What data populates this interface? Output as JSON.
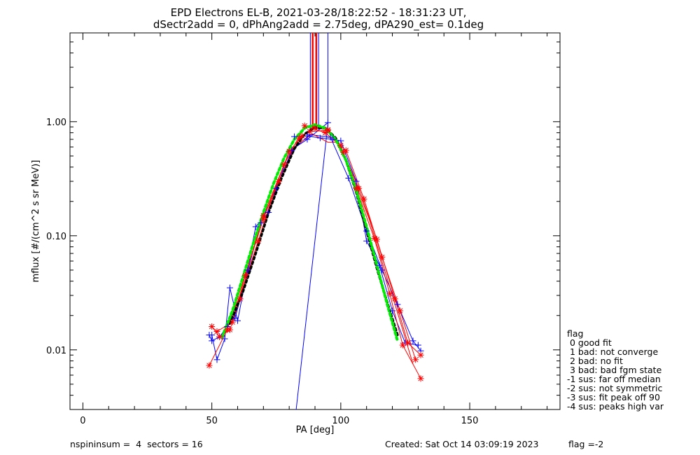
{
  "chart_data": {
    "type": "line",
    "title_line1": "EPD Electrons EL-B, 2021-03-28/18:22:52 - 18:31:23 UT,",
    "title_line2": "dSectr2add = 0, dPhAng2add = 2.75deg, dPA290_est=   0.1deg",
    "xlabel": "PA [deg]",
    "ylabel": "mflux [#/(cm^2 s sr MeV)]",
    "xlim": [
      -5,
      185
    ],
    "ylim": [
      0.003,
      6.0
    ],
    "yscale": "log",
    "x_ticks": [
      0,
      50,
      100,
      150
    ],
    "x_tick_labels": [
      "0",
      "50",
      "100",
      "150"
    ],
    "y_ticks": [
      0.01,
      0.1,
      1.0
    ],
    "y_tick_labels": [
      "0.01",
      "0.10",
      "1.00"
    ],
    "vertical_lines": [
      {
        "x": 89.1,
        "color": "#ff0000",
        "width": 2.5
      },
      {
        "x": 90.5,
        "color": "#ff0000",
        "width": 2.5
      },
      {
        "x": 88.2,
        "color": "#0000ff",
        "width": 1
      },
      {
        "x": 91.4,
        "color": "#0000ff",
        "width": 1
      },
      {
        "x": 95.0,
        "color": "#0000ff",
        "width": 1
      }
    ],
    "series": [
      {
        "color": "#0000ff",
        "marker": "plus",
        "x": [
          82,
          87,
          92,
          97,
          100,
          106,
          110,
          115,
          120,
          125,
          130
        ],
        "y": [
          0.74,
          0.75,
          0.72,
          0.7,
          0.68,
          0.3,
          0.09,
          0.055,
          0.022,
          0.0115,
          0.011
        ]
      },
      {
        "color": "#0000ff",
        "marker": "plus",
        "x": [
          50,
          52,
          55,
          57,
          60,
          67,
          72,
          80,
          87,
          95
        ],
        "y": [
          0.0135,
          0.0082,
          0.0125,
          0.035,
          0.018,
          0.12,
          0.16,
          0.55,
          0.7,
          0.98
        ]
      },
      {
        "color": "#0000ff",
        "marker": "none",
        "x": [
          82.7,
          95
        ],
        "y": [
          0.003,
          0.95
        ]
      },
      {
        "color": "#0000ff",
        "marker": "plus",
        "x": [
          49,
          50,
          53,
          56,
          59,
          64,
          69,
          75,
          81,
          88,
          96,
          103,
          110,
          116,
          122,
          128,
          131
        ],
        "y": [
          0.0135,
          0.012,
          0.013,
          0.016,
          0.019,
          0.05,
          0.13,
          0.26,
          0.56,
          0.77,
          0.73,
          0.32,
          0.11,
          0.05,
          0.025,
          0.012,
          0.0098
        ]
      },
      {
        "color": "#ff0000",
        "marker": "star",
        "x": [
          49,
          56,
          70,
          80,
          85,
          88,
          95,
          100,
          106,
          113,
          119,
          124,
          131
        ],
        "y": [
          0.0073,
          0.015,
          0.14,
          0.55,
          0.75,
          0.82,
          0.84,
          0.62,
          0.26,
          0.095,
          0.031,
          0.011,
          0.0056
        ]
      },
      {
        "color": "#ff0000",
        "marker": "star",
        "x": [
          50,
          53,
          57,
          61,
          68,
          76,
          84,
          90,
          95,
          101,
          107,
          114,
          121,
          126,
          131
        ],
        "y": [
          0.016,
          0.013,
          0.015,
          0.028,
          0.09,
          0.3,
          0.72,
          0.88,
          0.85,
          0.54,
          0.26,
          0.093,
          0.028,
          0.0115,
          0.009
        ]
      },
      {
        "color": "#ff0000",
        "marker": "star",
        "x": [
          52,
          58,
          63,
          70,
          78,
          86,
          94,
          102,
          109,
          116,
          123,
          129
        ],
        "y": [
          0.0145,
          0.0175,
          0.045,
          0.15,
          0.42,
          0.92,
          0.8,
          0.56,
          0.21,
          0.065,
          0.022,
          0.0082
        ]
      },
      {
        "color": "#ff0000",
        "marker": "none",
        "x": [
          55,
          61,
          68,
          74,
          82,
          89,
          95,
          99,
          104,
          111,
          118,
          124,
          128
        ],
        "y": [
          0.0145,
          0.03,
          0.09,
          0.24,
          0.6,
          0.78,
          0.66,
          0.66,
          0.36,
          0.14,
          0.042,
          0.015,
          0.0075
        ]
      },
      {
        "color": "#000000",
        "marker": "none",
        "dash": "3,4",
        "width": 3.5,
        "x": [
          57,
          62,
          67,
          72,
          77,
          82,
          86,
          90,
          94,
          98,
          102,
          106,
          110,
          114,
          118,
          122
        ],
        "y": [
          0.017,
          0.032,
          0.07,
          0.16,
          0.32,
          0.58,
          0.78,
          0.89,
          0.88,
          0.72,
          0.46,
          0.24,
          0.11,
          0.052,
          0.026,
          0.0135
        ]
      },
      {
        "color": "#00ee00",
        "marker": "none",
        "dash": "3,4",
        "width": 4,
        "x": [
          54,
          58,
          62,
          66,
          70,
          74,
          78,
          82,
          86,
          90,
          94,
          98,
          102,
          106,
          110,
          114,
          118,
          122
        ],
        "y": [
          0.013,
          0.022,
          0.043,
          0.085,
          0.16,
          0.29,
          0.48,
          0.7,
          0.88,
          0.94,
          0.88,
          0.7,
          0.46,
          0.25,
          0.12,
          0.055,
          0.025,
          0.012
        ]
      }
    ],
    "legend": {
      "placement": "right",
      "title": "flag",
      "entries": [
        " 0 good fit",
        " 1 bad: not converge",
        " 2 bad: no fit",
        " 3 bad: bad fgm state",
        "-1 sus: far off median",
        "-2 sus: not symmetric",
        "-3 sus: fit peak off 90",
        "-4 sus: peaks high var"
      ]
    }
  },
  "footer": {
    "left": "nspininsum =  4  sectors = 16",
    "created": "Created: Sat Oct 14 03:09:19 2023",
    "flag": "flag =-2"
  },
  "colors": {
    "background": "#ffffff",
    "axes": "#000000",
    "blue": "#0000ff",
    "red": "#ff0000",
    "green": "#00ee00"
  }
}
